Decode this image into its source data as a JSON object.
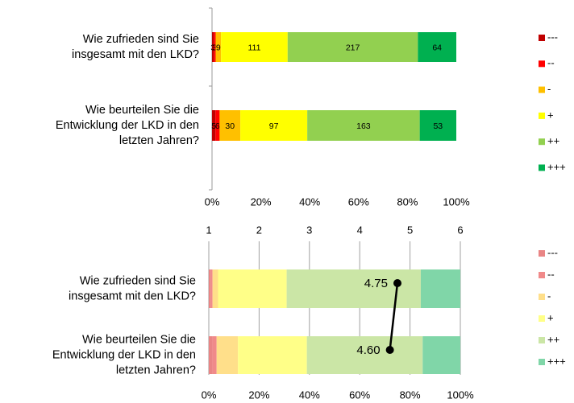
{
  "chart_data": [
    {
      "type": "stacked_bar_percent",
      "categories": [
        [
          "Wie zufrieden sind Sie",
          "insgesamt mit den LKD?"
        ],
        [
          "Wie beurteilen Sie die",
          "Entwicklung der LKD in den",
          "letzten Jahren?"
        ]
      ],
      "series": [
        {
          "name": "---",
          "color": "#c00000",
          "values": [
            3,
            5
          ]
        },
        {
          "name": "--",
          "color": "#ff0000",
          "values": [
            3,
            6
          ]
        },
        {
          "name": "-",
          "color": "#ffc000",
          "values": [
            9,
            30
          ]
        },
        {
          "name": "+",
          "color": "#ffff00",
          "values": [
            111,
            97
          ]
        },
        {
          "name": "++",
          "color": "#92d050",
          "values": [
            217,
            163
          ]
        },
        {
          "name": "+++",
          "color": "#00b050",
          "values": [
            64,
            53
          ]
        }
      ],
      "xlim": [
        0,
        100
      ],
      "xticks": [
        {
          "value": 0,
          "label": "0%"
        },
        {
          "value": 20,
          "label": "20%"
        },
        {
          "value": 40,
          "label": "40%"
        },
        {
          "value": 60,
          "label": "60%"
        },
        {
          "value": 80,
          "label": "80%"
        },
        {
          "value": 100,
          "label": "100%"
        }
      ],
      "value_labels_shown": true,
      "grid": false
    },
    {
      "type": "stacked_bar_percent_with_mean",
      "categories": [
        [
          "Wie zufrieden sind Sie",
          "insgesamt mit den LKD?"
        ],
        [
          "Wie beurteilen Sie die",
          "Entwicklung der LKD in den",
          "letzten Jahren?"
        ]
      ],
      "series": [
        {
          "name": "---",
          "color": "#e98585",
          "values": [
            3,
            5
          ]
        },
        {
          "name": "--",
          "color": "#f08a8a",
          "values": [
            3,
            6
          ]
        },
        {
          "name": "-",
          "color": "#ffdf8a",
          "values": [
            9,
            30
          ]
        },
        {
          "name": "+",
          "color": "#ffff88",
          "values": [
            111,
            97
          ]
        },
        {
          "name": "++",
          "color": "#cbe6a6",
          "values": [
            217,
            163
          ]
        },
        {
          "name": "+++",
          "color": "#80d6a8",
          "values": [
            64,
            53
          ]
        }
      ],
      "xlim": [
        0,
        100
      ],
      "xticks": [
        {
          "value": 0,
          "label": "0%"
        },
        {
          "value": 20,
          "label": "20%"
        },
        {
          "value": 40,
          "label": "40%"
        },
        {
          "value": 60,
          "label": "60%"
        },
        {
          "value": 80,
          "label": "80%"
        },
        {
          "value": 100,
          "label": "100%"
        }
      ],
      "x2lim": [
        1,
        6
      ],
      "x2ticks": [
        1,
        2,
        3,
        4,
        5,
        6
      ],
      "mean": {
        "values": [
          4.75,
          4.6
        ],
        "value_labels": [
          "4.75",
          "4.60"
        ],
        "color": "#000000"
      },
      "value_labels_shown": false,
      "grid": true
    }
  ]
}
